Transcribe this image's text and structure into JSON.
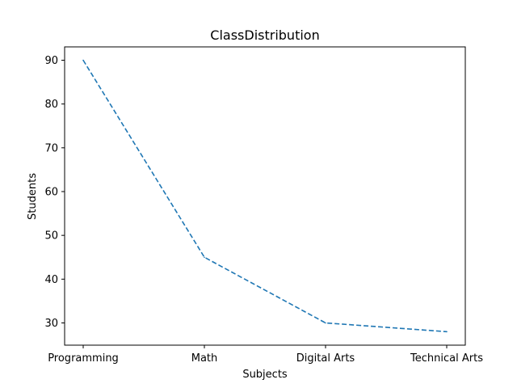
{
  "chart_data": {
    "type": "line",
    "title": "ClassDistribution",
    "xlabel": "Subjects",
    "ylabel": "Students",
    "categories": [
      "Programming",
      "Math",
      "Digital Arts",
      "Technical Arts"
    ],
    "series": [
      {
        "values": [
          90,
          45,
          30,
          28
        ],
        "color": "#1f77b4",
        "linestyle": "dashed"
      }
    ],
    "ylim": [
      25,
      92
    ],
    "yticks": [
      30,
      40,
      50,
      60,
      70,
      80,
      90
    ],
    "grid": false
  }
}
